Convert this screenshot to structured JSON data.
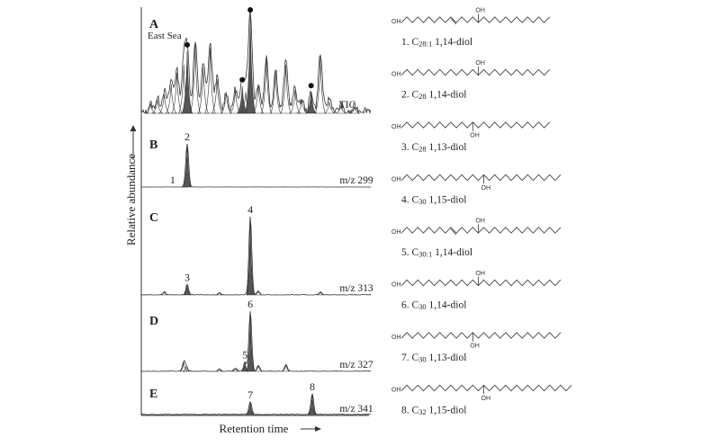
{
  "chart_data": {
    "type": "line",
    "xlabel": "Retention time",
    "ylabel": "Relative abundance",
    "panels": [
      {
        "letter": "A",
        "sublabel": "East Sea",
        "trace": "TIC",
        "baseline_noise": "high",
        "peaks": [
          {
            "rt": 0.04,
            "h": 0.1
          },
          {
            "rt": 0.07,
            "h": 0.14
          },
          {
            "rt": 0.1,
            "h": 0.2
          },
          {
            "rt": 0.13,
            "h": 0.3
          },
          {
            "rt": 0.155,
            "h": 0.42
          },
          {
            "rt": 0.185,
            "h": 0.5
          },
          {
            "rt": 0.2,
            "h": 0.64,
            "marked": true
          },
          {
            "rt": 0.235,
            "h": 0.72
          },
          {
            "rt": 0.27,
            "h": 0.48
          },
          {
            "rt": 0.3,
            "h": 0.68
          },
          {
            "rt": 0.33,
            "h": 0.35
          },
          {
            "rt": 0.37,
            "h": 0.22
          },
          {
            "rt": 0.41,
            "h": 0.24
          },
          {
            "rt": 0.44,
            "h": 0.28,
            "marked": true
          },
          {
            "rt": 0.455,
            "h": 0.22
          },
          {
            "rt": 0.475,
            "h": 1.0,
            "marked": true
          },
          {
            "rt": 0.51,
            "h": 0.3
          },
          {
            "rt": 0.545,
            "h": 0.58
          },
          {
            "rt": 0.585,
            "h": 0.44
          },
          {
            "rt": 0.63,
            "h": 0.5
          },
          {
            "rt": 0.67,
            "h": 0.24
          },
          {
            "rt": 0.7,
            "h": 0.14
          },
          {
            "rt": 0.74,
            "h": 0.22,
            "marked": true
          },
          {
            "rt": 0.78,
            "h": 0.58
          },
          {
            "rt": 0.82,
            "h": 0.12
          },
          {
            "rt": 0.87,
            "h": 0.08
          },
          {
            "rt": 0.93,
            "h": 0.06
          }
        ]
      },
      {
        "letter": "B",
        "trace": "m/z 299",
        "baseline_noise": "none",
        "peaks": [
          {
            "rt": 0.188,
            "h": 0.02,
            "label": "1"
          },
          {
            "rt": 0.2,
            "h": 1.0,
            "label": "2",
            "filled": true
          }
        ]
      },
      {
        "letter": "C",
        "trace": "m/z 313",
        "baseline_noise": "low",
        "peaks": [
          {
            "rt": 0.1,
            "h": 0.04
          },
          {
            "rt": 0.2,
            "h": 0.13,
            "label": "3",
            "filled": true
          },
          {
            "rt": 0.34,
            "h": 0.03
          },
          {
            "rt": 0.475,
            "h": 1.0,
            "label": "4",
            "filled": true
          },
          {
            "rt": 0.51,
            "h": 0.05
          },
          {
            "rt": 0.78,
            "h": 0.04
          }
        ]
      },
      {
        "letter": "D",
        "trace": "m/z 327",
        "baseline_noise": "low",
        "peaks": [
          {
            "rt": 0.185,
            "h": 0.15
          },
          {
            "rt": 0.195,
            "h": 0.08
          },
          {
            "rt": 0.34,
            "h": 0.04
          },
          {
            "rt": 0.41,
            "h": 0.05
          },
          {
            "rt": 0.452,
            "h": 0.16,
            "label": "5",
            "filled": true
          },
          {
            "rt": 0.475,
            "h": 1.0,
            "label": "6",
            "filled": true
          },
          {
            "rt": 0.51,
            "h": 0.1
          },
          {
            "rt": 0.63,
            "h": 0.11
          }
        ]
      },
      {
        "letter": "E",
        "trace": "m/z 341",
        "baseline_noise": "low",
        "peaks": [
          {
            "rt": 0.475,
            "h": 0.6,
            "label": "7",
            "filled": true
          },
          {
            "rt": 0.745,
            "h": 1.0,
            "label": "8",
            "filled": true
          }
        ]
      }
    ]
  },
  "compounds": [
    {
      "num": "1.",
      "chain": "C",
      "sub": "28:1",
      "pos": "1,14-diol",
      "carbons": 28,
      "oh": 14,
      "oh_side": "up",
      "db": 9
    },
    {
      "num": "2.",
      "chain": "C",
      "sub": "28",
      "pos": "1,14-diol",
      "carbons": 28,
      "oh": 14,
      "oh_side": "up",
      "db": 0
    },
    {
      "num": "3.",
      "chain": "C",
      "sub": "28",
      "pos": "1,13-diol",
      "carbons": 28,
      "oh": 13,
      "oh_side": "down",
      "db": 0
    },
    {
      "num": "4.",
      "chain": "C",
      "sub": "30",
      "pos": "1,15-diol",
      "carbons": 30,
      "oh": 15,
      "oh_side": "down",
      "db": 0
    },
    {
      "num": "5.",
      "chain": "C",
      "sub": "30:1",
      "pos": "1,14-diol",
      "carbons": 30,
      "oh": 14,
      "oh_side": "up",
      "db": 9
    },
    {
      "num": "6.",
      "chain": "C",
      "sub": "30",
      "pos": "1,14-diol",
      "carbons": 30,
      "oh": 14,
      "oh_side": "up",
      "db": 0
    },
    {
      "num": "7.",
      "chain": "C",
      "sub": "30",
      "pos": "1,13-diol",
      "carbons": 30,
      "oh": 13,
      "oh_side": "down",
      "db": 0
    },
    {
      "num": "8.",
      "chain": "C",
      "sub": "32",
      "pos": "1,15-diol",
      "carbons": 32,
      "oh": 15,
      "oh_side": "down",
      "db": 0
    }
  ],
  "oh_text": "OH"
}
